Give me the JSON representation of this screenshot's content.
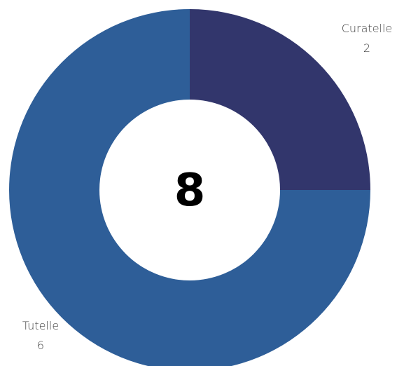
{
  "chart_data": {
    "type": "pie",
    "variant": "donut",
    "center_label": "8",
    "slices": [
      {
        "name": "Curatelle",
        "value": 2,
        "value_label": "2",
        "color": "#32366C"
      },
      {
        "name": "Tutelle",
        "value": 6,
        "value_label": "6",
        "color": "#2E5E98"
      }
    ],
    "start_angle_deg": 0,
    "direction": "clockwise",
    "legend": "none"
  }
}
